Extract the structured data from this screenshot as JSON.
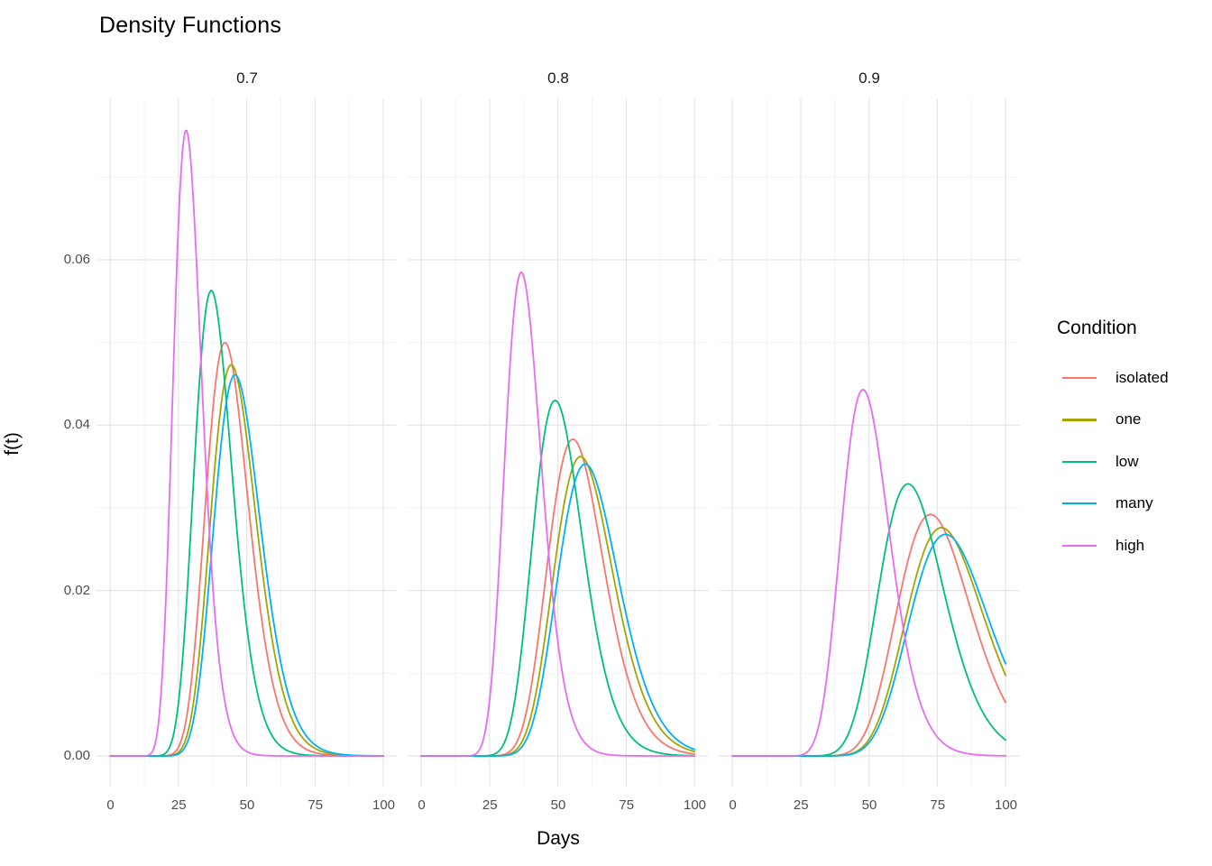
{
  "title": "Density Functions",
  "x_axis": {
    "title": "Days",
    "tick_labels": [
      "0",
      "25",
      "50",
      "75",
      "100"
    ]
  },
  "y_axis": {
    "title": "f(t)",
    "tick_labels": [
      "0.00",
      "0.02",
      "0.04",
      "0.06"
    ]
  },
  "facets": {
    "labels": [
      "0.7",
      "0.8",
      "0.9"
    ]
  },
  "legend": {
    "title": "Condition",
    "items": [
      {
        "label": "isolated",
        "color": "#F8766D"
      },
      {
        "label": "one",
        "color": "#A3A500"
      },
      {
        "label": "low",
        "color": "#00BF7D"
      },
      {
        "label": "many",
        "color": "#00B0F6"
      },
      {
        "label": "high",
        "color": "#E76BF3"
      }
    ]
  },
  "chart_data": {
    "type": "line",
    "title": "Density Functions",
    "xlabel": "Days",
    "ylabel": "f(t)",
    "facet_labels": [
      "0.7",
      "0.8",
      "0.9"
    ],
    "xlim": [
      0,
      100
    ],
    "ylim": [
      0,
      0.0795
    ],
    "x_major_ticks": [
      0,
      25,
      50,
      75,
      100
    ],
    "x_minor_ticks": [
      12.5,
      37.5,
      62.5,
      87.5
    ],
    "y_major_ticks": [
      0,
      0.02,
      0.04,
      0.06
    ],
    "y_minor_ticks": [
      0.01,
      0.03,
      0.05,
      0.07
    ],
    "grid": "major+minor",
    "legend_position": "right",
    "curve_shape": "lognormal",
    "series": [
      {
        "name": "isolated",
        "color": "#F8766D",
        "facet_curves": [
          {
            "facet": "0.7",
            "mode_days": 42.0,
            "peak_density": 0.05
          },
          {
            "facet": "0.8",
            "mode_days": 55.5,
            "peak_density": 0.0383
          },
          {
            "facet": "0.9",
            "mode_days": 72.5,
            "peak_density": 0.0292
          }
        ]
      },
      {
        "name": "one",
        "color": "#A3A500",
        "facet_curves": [
          {
            "facet": "0.7",
            "mode_days": 44.3,
            "peak_density": 0.0473
          },
          {
            "facet": "0.8",
            "mode_days": 58.3,
            "peak_density": 0.0362
          },
          {
            "facet": "0.9",
            "mode_days": 76.5,
            "peak_density": 0.0276
          }
        ]
      },
      {
        "name": "low",
        "color": "#00BF7D",
        "facet_curves": [
          {
            "facet": "0.7",
            "mode_days": 37.0,
            "peak_density": 0.0563
          },
          {
            "facet": "0.8",
            "mode_days": 49.0,
            "peak_density": 0.043
          },
          {
            "facet": "0.9",
            "mode_days": 64.3,
            "peak_density": 0.0329
          }
        ]
      },
      {
        "name": "many",
        "color": "#00B0F6",
        "facet_curves": [
          {
            "facet": "0.7",
            "mode_days": 45.7,
            "peak_density": 0.0461
          },
          {
            "facet": "0.8",
            "mode_days": 60.0,
            "peak_density": 0.0353
          },
          {
            "facet": "0.9",
            "mode_days": 78.0,
            "peak_density": 0.0268
          }
        ]
      },
      {
        "name": "high",
        "color": "#E76BF3",
        "facet_curves": [
          {
            "facet": "0.7",
            "mode_days": 27.8,
            "peak_density": 0.0757
          },
          {
            "facet": "0.8",
            "mode_days": 36.6,
            "peak_density": 0.0585
          },
          {
            "facet": "0.9",
            "mode_days": 47.8,
            "peak_density": 0.0443
          }
        ]
      }
    ]
  }
}
